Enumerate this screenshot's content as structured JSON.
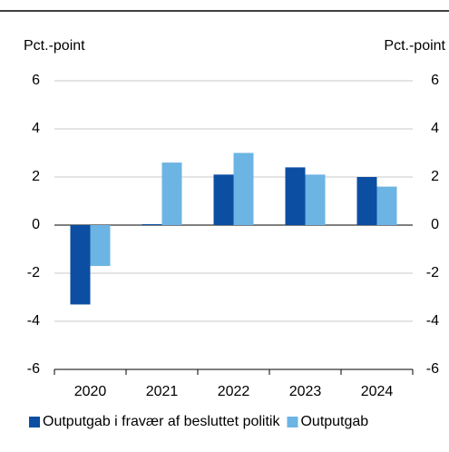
{
  "chart_data": {
    "type": "bar",
    "ylabel": "Pct.-point",
    "y2label": "Pct.-point",
    "categories": [
      "2020",
      "2021",
      "2022",
      "2023",
      "2024"
    ],
    "series": [
      {
        "name": "Outputgab i fravær af besluttet politik",
        "color": "#0b4ea2",
        "values": [
          -3.3,
          0.0,
          2.1,
          2.4,
          2.0
        ]
      },
      {
        "name": "Outputgab",
        "color": "#6cb4e4",
        "values": [
          -1.7,
          2.6,
          3.0,
          2.1,
          1.6
        ]
      }
    ],
    "ylim": [
      -6,
      6
    ],
    "yticks": [
      -6,
      -4,
      -2,
      0,
      2,
      4,
      6
    ],
    "y2lim": [
      -6,
      6
    ],
    "y2ticks": [
      -6,
      -4,
      -2,
      0,
      2,
      4,
      6
    ],
    "grid": true
  }
}
